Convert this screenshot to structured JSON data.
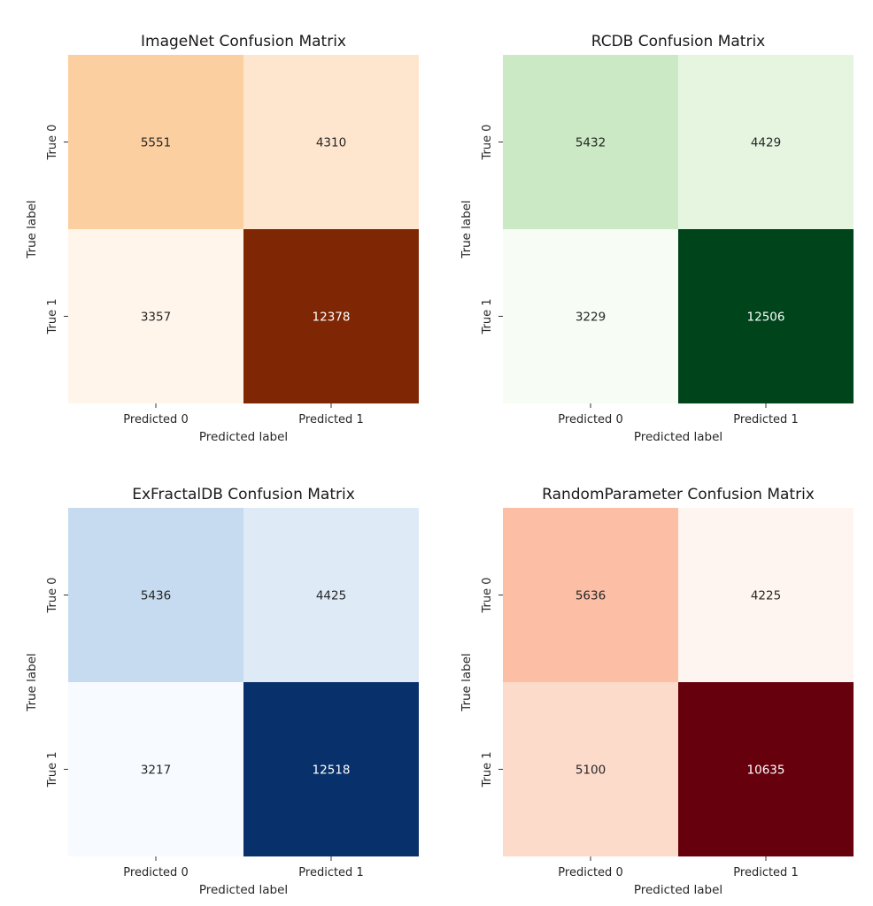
{
  "chart_data": [
    {
      "type": "heatmap",
      "title": "ImageNet Confusion Matrix",
      "xlabel": "Predicted label",
      "ylabel": "True label",
      "x_ticks": [
        "Predicted 0",
        "Predicted 1"
      ],
      "y_ticks": [
        "True 0",
        "True 1"
      ],
      "values": [
        [
          5551,
          4310
        ],
        [
          3357,
          12378
        ]
      ],
      "colormap": {
        "low": "#fff5eb",
        "high": "#7f2704"
      }
    },
    {
      "type": "heatmap",
      "title": "RCDB Confusion Matrix",
      "xlabel": "Predicted label",
      "ylabel": "True label",
      "x_ticks": [
        "Predicted 0",
        "Predicted 1"
      ],
      "y_ticks": [
        "True 0",
        "True 1"
      ],
      "values": [
        [
          5432,
          4429
        ],
        [
          3229,
          12506
        ]
      ],
      "colormap": {
        "low": "#f7fcf5",
        "high": "#00441b"
      }
    },
    {
      "type": "heatmap",
      "title": "ExFractalDB Confusion Matrix",
      "xlabel": "Predicted label",
      "ylabel": "True label",
      "x_ticks": [
        "Predicted 0",
        "Predicted 1"
      ],
      "y_ticks": [
        "True 0",
        "True 1"
      ],
      "values": [
        [
          5436,
          4425
        ],
        [
          3217,
          12518
        ]
      ],
      "colormap": {
        "low": "#f7fbff",
        "high": "#08306b"
      }
    },
    {
      "type": "heatmap",
      "title": "RandomParameter Confusion Matrix",
      "xlabel": "Predicted label",
      "ylabel": "True label",
      "x_ticks": [
        "Predicted 0",
        "Predicted 1"
      ],
      "y_ticks": [
        "True 0",
        "True 1"
      ],
      "values": [
        [
          5636,
          4225
        ],
        [
          5100,
          10635
        ]
      ],
      "colormap": {
        "low": "#fff5f0",
        "high": "#67000d"
      }
    }
  ],
  "colors": {
    "ImageNet": [
      "#fccfa0",
      "#fee6ce",
      "#fff5eb",
      "#7f2704"
    ],
    "RCDB": [
      "#cae9c4",
      "#e5f5e0",
      "#f7fcf5",
      "#00441b"
    ],
    "ExFractalDB": [
      "#c6dbef",
      "#deebf7",
      "#f7fbff",
      "#08306b"
    ],
    "RandomParameter": [
      "#fcbfa5",
      "#fff5f0",
      "#fddbcb",
      "#67000d"
    ]
  }
}
